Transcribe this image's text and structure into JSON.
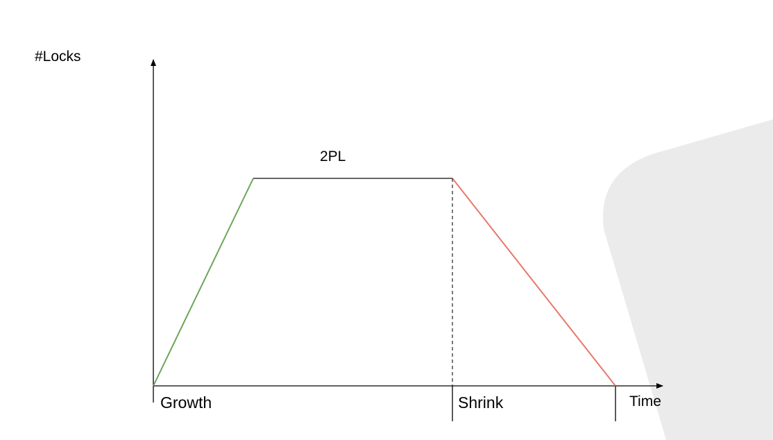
{
  "diagram": {
    "title": "2PL",
    "y_axis_label": "#Locks",
    "x_axis_label": "Time",
    "phases": [
      {
        "name": "Growth",
        "color": "#6aa55a"
      },
      {
        "name": "Shrink",
        "color": "#e8776c"
      }
    ],
    "plateau_color": "#333333",
    "divider_style": "dashed",
    "background_shape_color": "#ebebeb"
  }
}
